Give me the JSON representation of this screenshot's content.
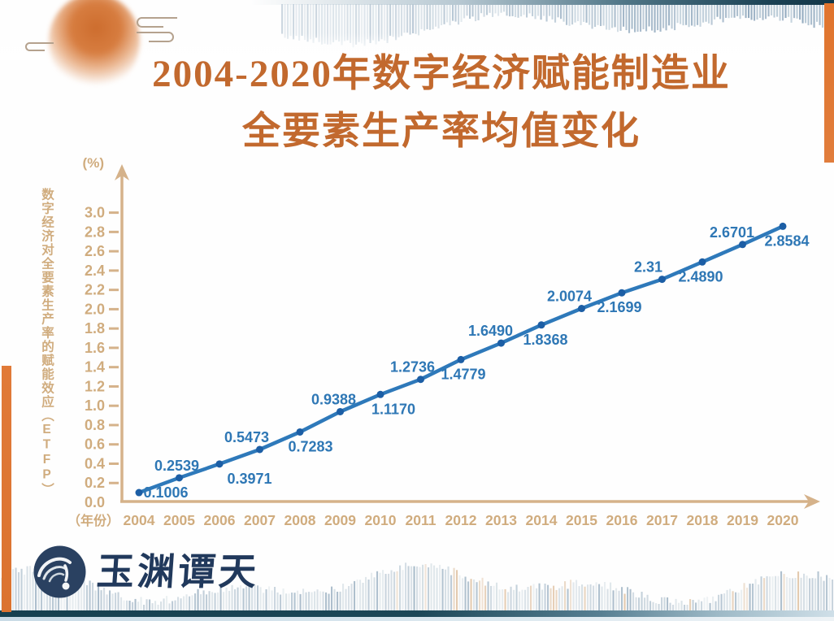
{
  "title": {
    "line1": "2004-2020年数字经济赋能制造业",
    "line2": "全要素生产率均值变化",
    "color": "#c2692e"
  },
  "chart_data": {
    "type": "line",
    "title": "2004-2020年数字经济赋能制造业全要素生产率均值变化",
    "x": [
      2004,
      2005,
      2006,
      2007,
      2008,
      2009,
      2010,
      2011,
      2012,
      2013,
      2014,
      2015,
      2016,
      2017,
      2018,
      2019,
      2020
    ],
    "values": [
      0.1006,
      0.2539,
      0.3971,
      0.5473,
      0.7283,
      0.9388,
      1.117,
      1.2736,
      1.4779,
      1.649,
      1.8368,
      2.0074,
      2.1699,
      2.31,
      2.489,
      2.6701,
      2.8584
    ],
    "point_labels": [
      "0.1006",
      "0.2539",
      "0.3971",
      "0.5473",
      "0.7283",
      "0.9388",
      "1.1170",
      "1.2736",
      "1.4779",
      "1.6490",
      "1.8368",
      "2.0074",
      "2.1699",
      "2.31",
      "2.4890",
      "2.6701",
      "2.8584"
    ],
    "ylabel": "数字经济对全要素生产率的赋能效应（ETFP）",
    "y_unit": "(%)",
    "xlabel": "（年份）",
    "ylim": [
      0.0,
      3.0
    ],
    "ytick_step": 0.2,
    "grid": false,
    "legend": false,
    "line_color": "#2e79ba",
    "marker_color": "#1c5ea5",
    "value_label_color": "#2e77b5",
    "axis_color": "#d5b28a",
    "axis_text_color": "#d0ac7e"
  },
  "footer": {
    "logo_text": "玉渊谭天"
  },
  "decor": {
    "accent_orange": "#e0762f",
    "teal_strip": "#1c4355",
    "wave_blue": "#8ba4b8",
    "logo_navy": "#21395c"
  }
}
